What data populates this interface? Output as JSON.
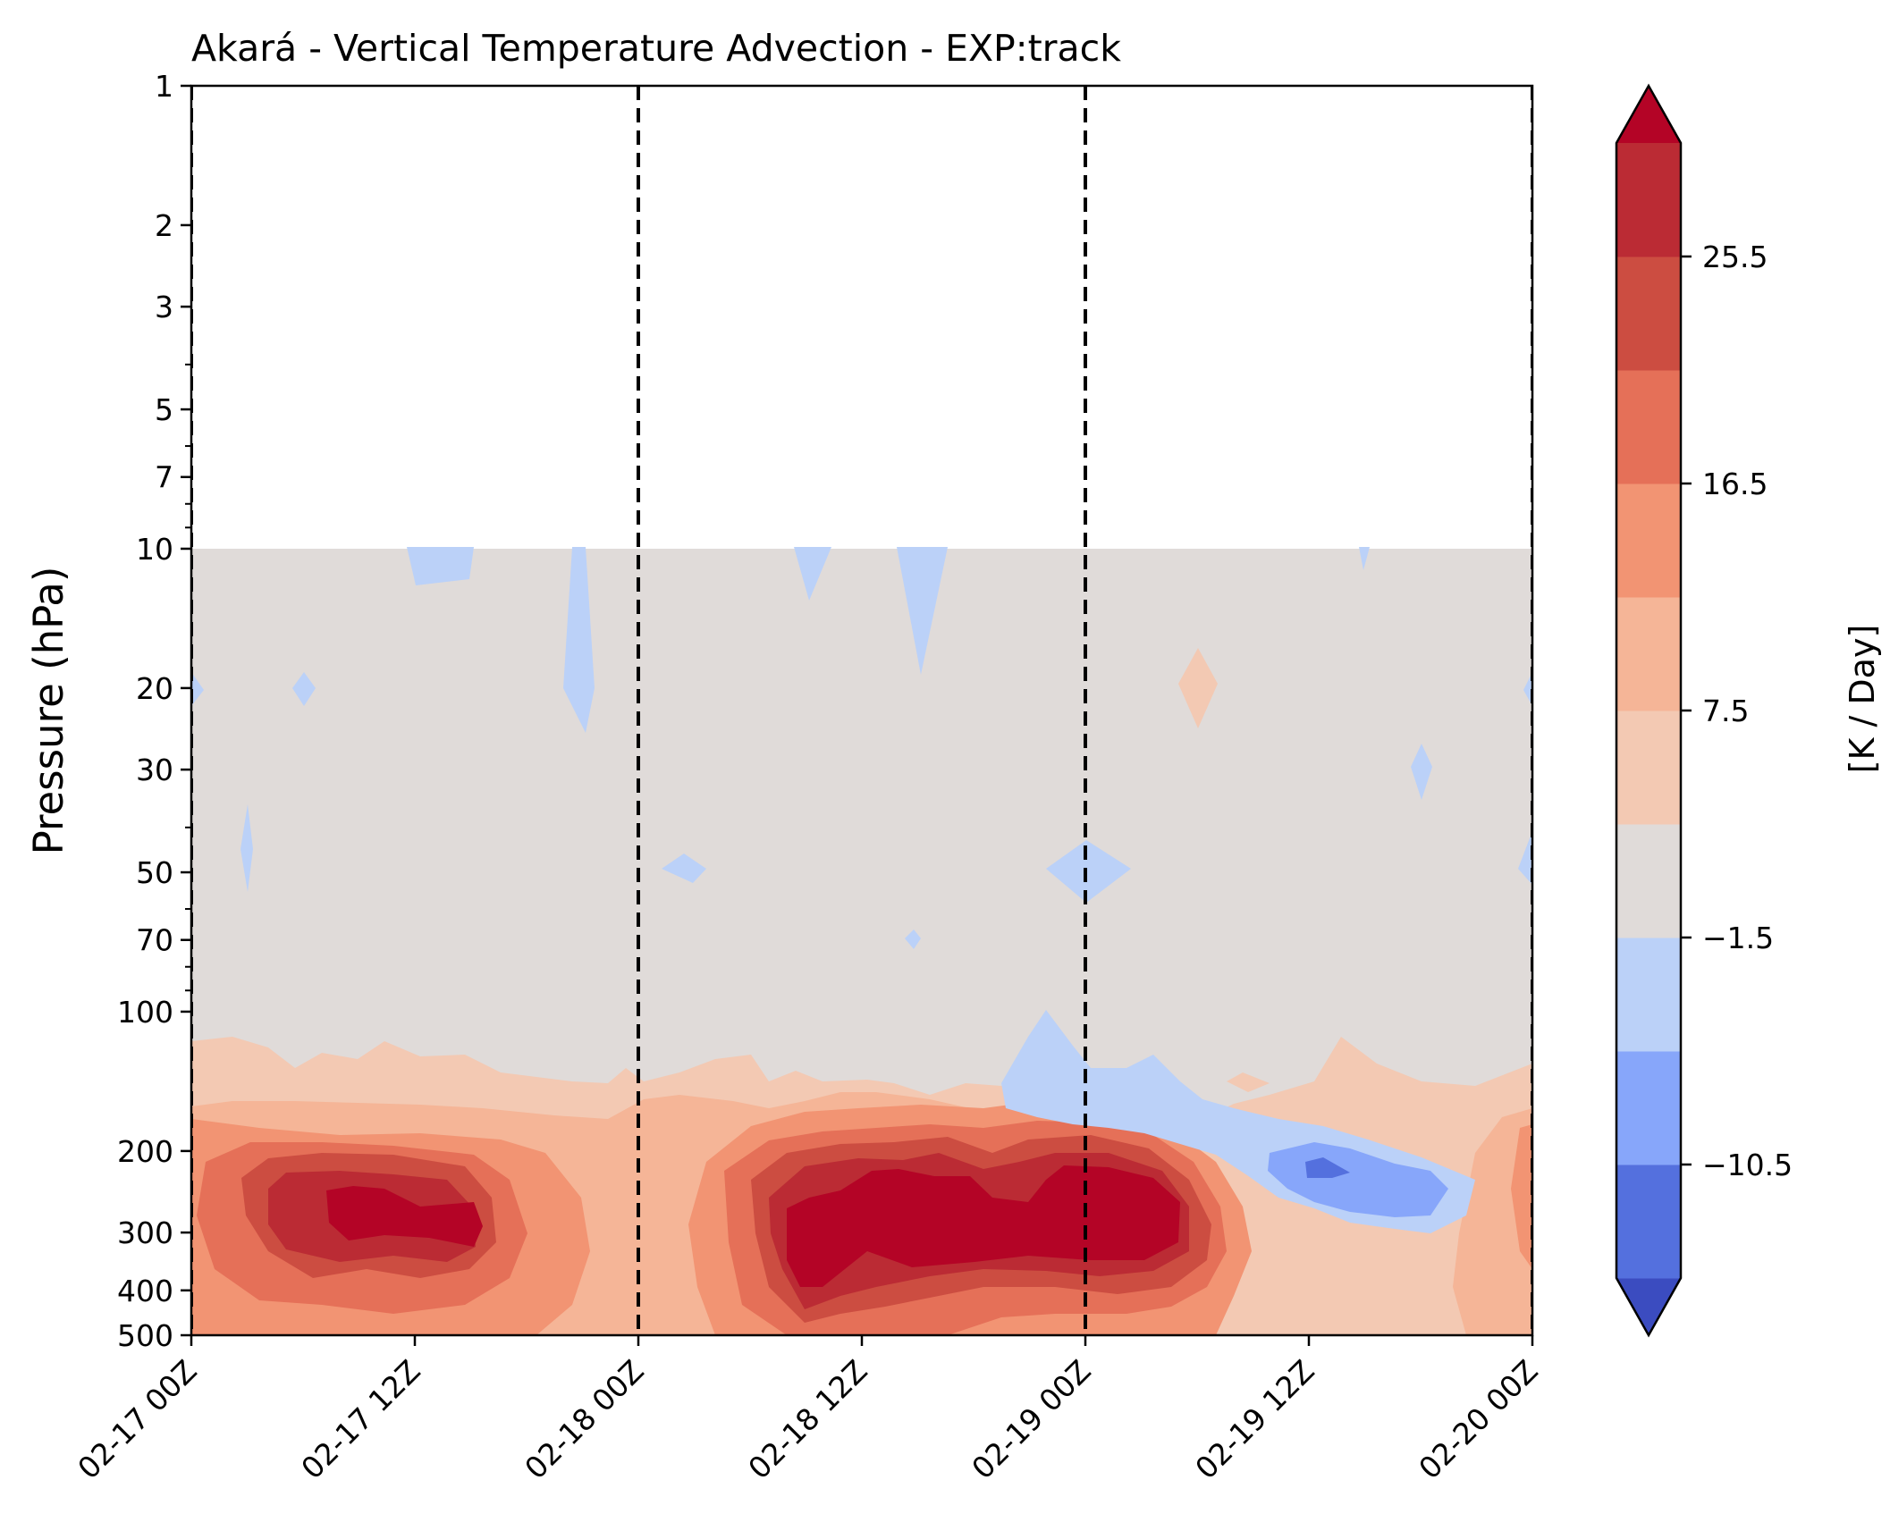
{
  "chart_data": {
    "type": "heatmap",
    "subtype": "filled-contour time-pressure cross section",
    "title": "Akará - Vertical Temperature Advection - EXP:track",
    "xlabel": "",
    "ylabel": "Pressure (hPa)",
    "y_scale": "log",
    "y_inverted": true,
    "ylim": [
      500,
      1
    ],
    "y_ticks": [
      1,
      2,
      3,
      5,
      7,
      10,
      20,
      30,
      50,
      70,
      100,
      200,
      300,
      400,
      500
    ],
    "y_tick_labels": [
      "1",
      "2",
      "3",
      "5",
      "7",
      "10",
      "20",
      "30",
      "50",
      "70",
      "100",
      "200",
      "300",
      "400",
      "500"
    ],
    "x_ticks": [
      "2025-02-17 00:00",
      "2025-02-17 12:00",
      "2025-02-18 00:00",
      "2025-02-18 12:00",
      "2025-02-19 00:00",
      "2025-02-19 12:00",
      "2025-02-20 00:00"
    ],
    "x_tick_labels": [
      "02-17 00Z",
      "02-17 12Z",
      "02-18 00Z",
      "02-18 12Z",
      "02-19 00Z",
      "02-19 12Z",
      "02-20 00Z"
    ],
    "xlim": [
      "2025-02-17 00:00",
      "2025-02-20 00:00"
    ],
    "data_top_pressure": 10,
    "dashed_vertical_lines": [
      "2025-02-17 00:00",
      "2025-02-18 00:00",
      "2025-02-19 00:00",
      "2025-02-20 00:00"
    ],
    "colorbar": {
      "label": "[K / Day]",
      "extend": "both",
      "levels": [
        -15,
        -10.5,
        -6,
        -1.5,
        3,
        7.5,
        12,
        16.5,
        21,
        25.5,
        30
      ],
      "tick_values": [
        -10.5,
        -1.5,
        7.5,
        16.5,
        25.5
      ],
      "tick_labels": [
        "−10.5",
        "−1.5",
        "7.5",
        "16.5",
        "25.5"
      ],
      "colors": [
        "#3b4cc0",
        "#5470de",
        "#87a6fa",
        "#bbd1f8",
        "#e0dbd9",
        "#f3c9b3",
        "#f5b597",
        "#f29473",
        "#e57058",
        "#cc4d41",
        "#bb2b34",
        "#b40426"
      ]
    },
    "features": [
      {
        "desc": "warm core max",
        "time": "2025-02-17 10:00",
        "p_range": [
          240,
          400
        ],
        "value": ">25.5"
      },
      {
        "desc": "warm core max",
        "time": "2025-02-18 16:00",
        "p_range": [
          220,
          450
        ],
        "value": ">25.5"
      },
      {
        "desc": "warm core max",
        "time": "2025-02-19 04:00",
        "p_range": [
          210,
          380
        ],
        "value": ">25.5"
      },
      {
        "desc": "cool region",
        "time": "2025-02-19 10:00",
        "p_range": [
          160,
          320
        ],
        "value": "-10.5 to -1.5"
      }
    ]
  }
}
